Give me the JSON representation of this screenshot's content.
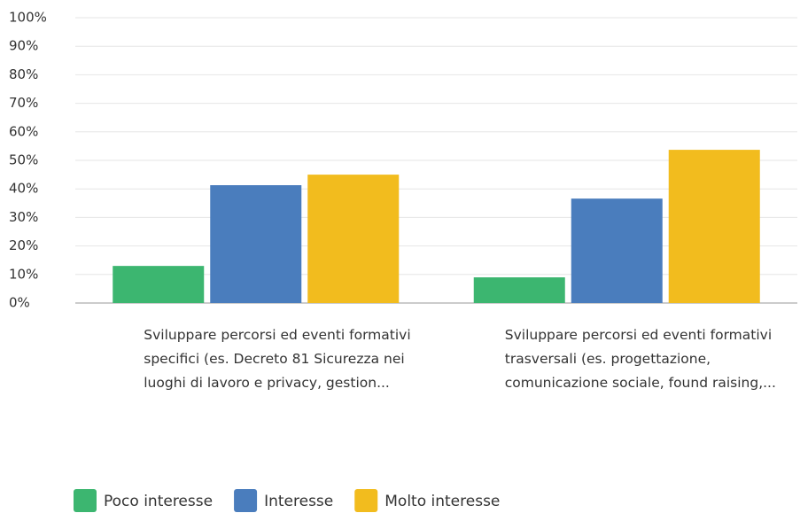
{
  "chart_data": {
    "type": "bar",
    "categories": [
      "Sviluppare percorsi ed eventi formativi specifici (es. Decreto 81 Sicurezza nei luoghi di lavoro e privacy, gestion...",
      "Sviluppare percorsi ed eventi formativi trasversali (es. progettazione, comunicazione sociale, found raising,..."
    ],
    "series": [
      {
        "name": "Poco interesse",
        "color": "#3cb670",
        "values": [
          13.0,
          9.0
        ]
      },
      {
        "name": "Interesse",
        "color": "#4a7dbd",
        "values": [
          41.3,
          36.6
        ]
      },
      {
        "name": "Molto interesse",
        "color": "#f2bc1e",
        "values": [
          45.0,
          53.7
        ]
      }
    ],
    "ylim": [
      0,
      100
    ],
    "yticks": [
      {
        "value": 0,
        "label": "0%"
      },
      {
        "value": 10,
        "label": "10%"
      },
      {
        "value": 20,
        "label": "20%"
      },
      {
        "value": 30,
        "label": "30%"
      },
      {
        "value": 40,
        "label": "40%"
      },
      {
        "value": 50,
        "label": "50%"
      },
      {
        "value": 60,
        "label": "60%"
      },
      {
        "value": 70,
        "label": "70%"
      },
      {
        "value": 80,
        "label": "80%"
      },
      {
        "value": 90,
        "label": "90%"
      },
      {
        "value": 100,
        "label": "100%"
      }
    ],
    "grid": true,
    "legend": "bottom"
  }
}
